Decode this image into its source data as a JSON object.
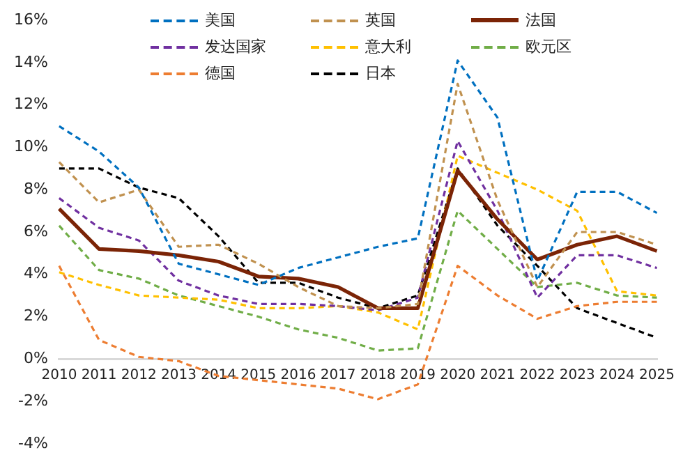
{
  "chart_data": {
    "type": "line",
    "categories": [
      "2010",
      "2011",
      "2012",
      "2013",
      "2014",
      "2015",
      "2016",
      "2017",
      "2018",
      "2019",
      "2020",
      "2021",
      "2022",
      "2023",
      "2024",
      "2025"
    ],
    "series": [
      {
        "name": "美国",
        "color": "#0070c0",
        "line_style": "dashed",
        "values": [
          11.0,
          9.8,
          8.1,
          4.5,
          4.0,
          3.5,
          4.3,
          4.8,
          5.3,
          5.7,
          14.1,
          11.4,
          3.7,
          7.9,
          7.9,
          6.9
        ]
      },
      {
        "name": "英国",
        "color": "#c0914f",
        "line_style": "dashed",
        "values": [
          9.3,
          7.4,
          8.0,
          5.3,
          5.4,
          4.5,
          3.4,
          2.5,
          2.4,
          2.6,
          13.0,
          7.5,
          3.4,
          6.0,
          6.0,
          5.4
        ]
      },
      {
        "name": "法国",
        "color": "#7b2406",
        "line_style": "solid",
        "values": [
          7.1,
          5.2,
          5.1,
          4.9,
          4.6,
          3.9,
          3.8,
          3.4,
          2.4,
          2.4,
          8.9,
          6.6,
          4.7,
          5.4,
          5.8,
          5.1
        ]
      },
      {
        "name": "发达国家",
        "color": "#7030a0",
        "line_style": "dashed",
        "values": [
          7.6,
          6.2,
          5.6,
          3.7,
          3.0,
          2.6,
          2.6,
          2.5,
          2.3,
          2.9,
          10.3,
          7.0,
          2.9,
          4.9,
          4.9,
          4.3
        ]
      },
      {
        "name": "意大利",
        "color": "#ffc000",
        "line_style": "dashed",
        "values": [
          4.1,
          3.5,
          3.0,
          2.9,
          2.8,
          2.4,
          2.4,
          2.5,
          2.2,
          1.4,
          9.6,
          8.8,
          8.0,
          7.0,
          3.2,
          3.0
        ]
      },
      {
        "name": "欧元区",
        "color": "#70ad47",
        "line_style": "dashed",
        "values": [
          6.3,
          4.2,
          3.8,
          3.0,
          2.5,
          2.0,
          1.4,
          1.0,
          0.4,
          0.5,
          7.0,
          5.2,
          3.4,
          3.6,
          3.0,
          2.9
        ]
      },
      {
        "name": "德国",
        "color": "#ed7d31",
        "line_style": "dashed",
        "values": [
          4.4,
          0.9,
          0.1,
          -0.1,
          -0.8,
          -1.0,
          -1.2,
          -1.4,
          -1.9,
          -1.2,
          4.4,
          3.0,
          1.9,
          2.5,
          2.7,
          2.7
        ]
      },
      {
        "name": "日本",
        "color": "#000000",
        "line_style": "dashed",
        "values": [
          9.0,
          9.0,
          8.1,
          7.6,
          5.8,
          3.6,
          3.6,
          2.9,
          2.4,
          3.0,
          9.0,
          6.3,
          4.4,
          2.4,
          1.7,
          1.0
        ]
      }
    ],
    "ylim": [
      -4,
      16
    ],
    "yticks": [
      {
        "value": -4,
        "label": "-4%"
      },
      {
        "value": -2,
        "label": "-2%"
      },
      {
        "value": 0,
        "label": "0%"
      },
      {
        "value": 2,
        "label": "2%"
      },
      {
        "value": 4,
        "label": "4%"
      },
      {
        "value": 6,
        "label": "6%"
      },
      {
        "value": 8,
        "label": "8%"
      },
      {
        "value": 10,
        "label": "10%"
      },
      {
        "value": 12,
        "label": "12%"
      },
      {
        "value": 14,
        "label": "14%"
      },
      {
        "value": 16,
        "label": "16%"
      }
    ],
    "grid": false,
    "legend": "top",
    "marker": "none"
  }
}
